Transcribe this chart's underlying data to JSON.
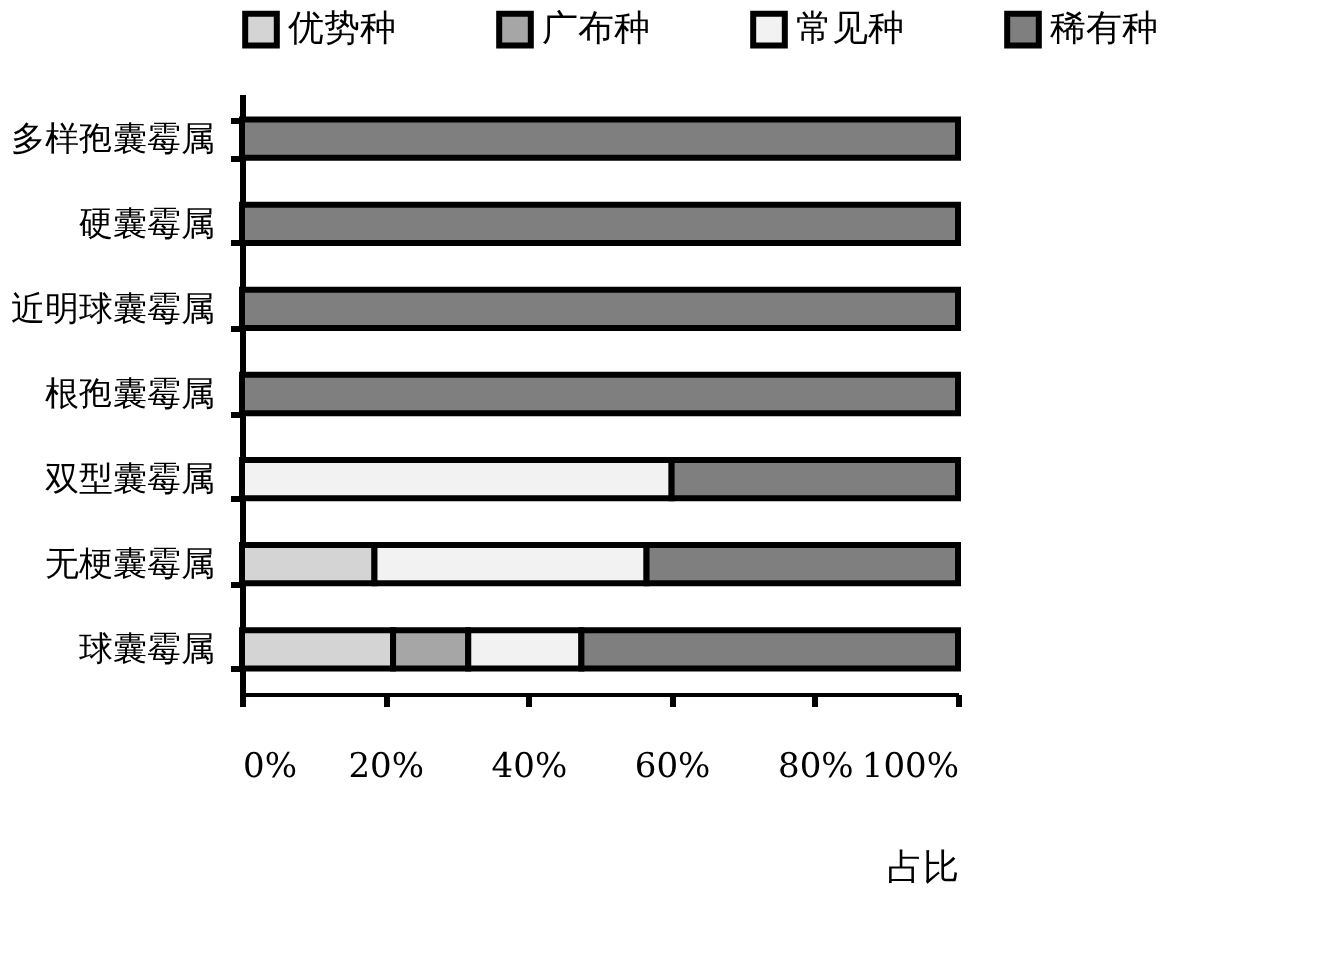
{
  "chart_data": {
    "type": "bar",
    "orientation": "horizontal",
    "stacked": true,
    "xlabel": "占比",
    "categories": [
      "多样孢囊霉属",
      "硬囊霉属",
      "近明球囊霉属",
      "根孢囊霉属",
      "双型囊霉属",
      "无梗囊霉属",
      "球囊霉属"
    ],
    "series": [
      {
        "name": "优势种",
        "color": "#d4d4d4",
        "values": [
          0,
          0,
          0,
          0,
          0,
          18.5,
          21.1
        ]
      },
      {
        "name": "广布种",
        "color": "#a6a6a6",
        "values": [
          0,
          0,
          0,
          0,
          0,
          0,
          10.5
        ]
      },
      {
        "name": "常见种",
        "color": "#f2f2f2",
        "values": [
          0,
          0,
          0,
          0,
          60,
          38,
          15.8
        ]
      },
      {
        "name": "稀有种",
        "color": "#7f7f7f",
        "values": [
          100,
          100,
          100,
          100,
          40,
          43.5,
          52.6
        ]
      }
    ],
    "xlim": [
      0,
      100
    ],
    "xticks": [
      {
        "value": 0,
        "label": "0%"
      },
      {
        "value": 20,
        "label": "20%"
      },
      {
        "value": 40,
        "label": "40%"
      },
      {
        "value": 60,
        "label": "60%"
      },
      {
        "value": 80,
        "label": "80%"
      },
      {
        "value": 100,
        "label": "100%"
      }
    ],
    "grid": false,
    "legend": "top"
  }
}
